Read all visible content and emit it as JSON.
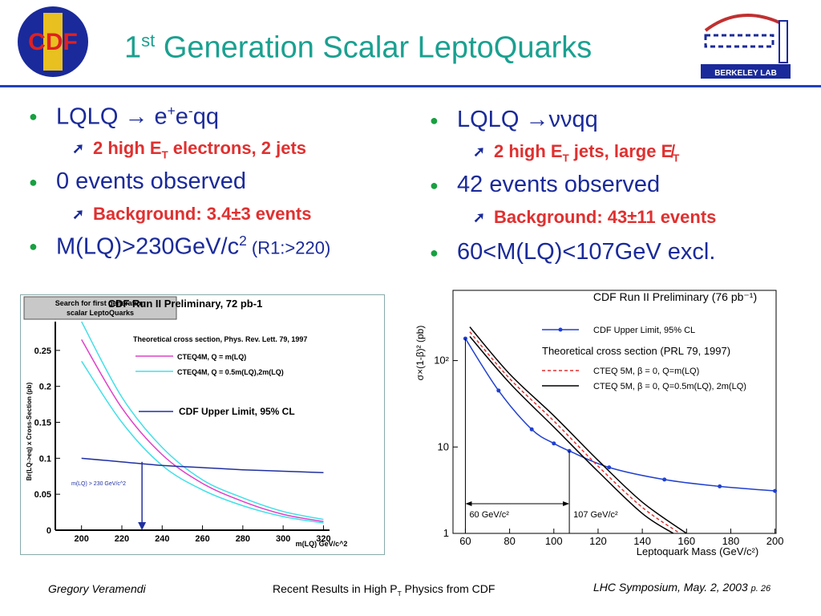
{
  "header": {
    "title_parts": [
      "1",
      "st",
      " Generation Scalar LeptoQuarks"
    ],
    "logo_left": "CDF",
    "logo_right": "BERKELEY LAB"
  },
  "left_bullets": [
    {
      "parts": [
        "LQLQ ",
        "→",
        " e",
        "+",
        "e",
        "-",
        "qq"
      ],
      "sub": [
        "2 high E",
        "T",
        " electrons, 2 jets"
      ]
    },
    {
      "parts": [
        "0 events observed"
      ],
      "sub": [
        "Background: 3.4±3 events"
      ]
    },
    {
      "parts": [
        "M(LQ)>230GeV/c",
        "2",
        " (R1:>220)"
      ]
    }
  ],
  "right_bullets": [
    {
      "parts": [
        "LQLQ ",
        "→",
        "ννqq"
      ],
      "sub": [
        "2 high E",
        "T",
        " jets, large ",
        "E̸",
        "T"
      ]
    },
    {
      "parts": [
        "42 events observed"
      ],
      "sub": [
        "Background: 43±11 events"
      ]
    },
    {
      "parts": [
        "60<M(LQ)<107GeV excl."
      ]
    }
  ],
  "charts": [
    {
      "type": "line",
      "title": "CDF Run II Preliminary, 72 pb-1",
      "box_text": [
        "Search for first generation",
        "scalar LeptoQuarks"
      ],
      "legend_title": "Theoretical  cross section, Phys. Rev. Lett. 79, 1997",
      "x_label": "m(LQ) GeV/c^2",
      "y_label": "Br(LQ->eq) x Cross-Section (pb)",
      "xlim": [
        187,
        323
      ],
      "ylim": [
        0,
        0.29
      ],
      "xticks": [
        200,
        220,
        240,
        260,
        280,
        300,
        320
      ],
      "yticks": [
        0,
        0.05,
        0.1,
        0.15,
        0.2,
        0.25
      ],
      "log_y": false,
      "series": [
        {
          "name": "CTEQ4M, Q = m(LQ)",
          "color": "#e040c8",
          "x": [
            200,
            220,
            240,
            260,
            280,
            300,
            320
          ],
          "values": [
            0.265,
            0.17,
            0.105,
            0.065,
            0.04,
            0.022,
            0.012
          ]
        },
        {
          "name": "CTEQ4M, Q = 0.5m(LQ),2m(LQ)",
          "color": "#40e0e8",
          "x": [
            200,
            220,
            240,
            260,
            280,
            300,
            320
          ],
          "values": [
            0.29,
            0.185,
            0.115,
            0.07,
            0.045,
            0.026,
            0.015
          ]
        },
        {
          "name": null,
          "color": "#40e0e8",
          "x": [
            200,
            220,
            240,
            260,
            280,
            300,
            320
          ],
          "values": [
            0.235,
            0.15,
            0.09,
            0.056,
            0.034,
            0.019,
            0.01
          ]
        },
        {
          "name": "CDF Upper Limit, 95% CL",
          "color": "#2030a0",
          "x": [
            200,
            220,
            240,
            260,
            280,
            300,
            320
          ],
          "values": [
            0.1,
            0.095,
            0.09,
            0.087,
            0.084,
            0.082,
            0.08
          ]
        }
      ],
      "limits": [
        {
          "x": 230,
          "label": "m(LQ) > 230 GeV/c^2"
        }
      ]
    },
    {
      "type": "line",
      "title": "CDF Run II Preliminary (76 pb⁻¹)",
      "legend_title": "Theoretical cross section (PRL 79, 1997)",
      "x_label": "Leptoquark Mass (GeV/c²)",
      "y_label": "σ×(1-β)² (pb)",
      "xlim": [
        54.4,
        200.5
      ],
      "ylim": [
        1,
        650
      ],
      "xticks": [
        60,
        80,
        100,
        120,
        140,
        160,
        180,
        200
      ],
      "yticks": [
        1,
        10,
        {
          "value": 100,
          "label": "10²"
        }
      ],
      "log_y": true,
      "series": [
        {
          "name": "CDF Upper Limit, 95% CL",
          "color": "#2040d0",
          "dots": true,
          "x": [
            60,
            75,
            90,
            100,
            107,
            125,
            150,
            175,
            200
          ],
          "values": [
            180,
            45,
            16,
            11,
            9,
            5.8,
            4.2,
            3.5,
            3.1
          ]
        },
        {
          "name": "CTEQ 5M, β = 0, Q=m(LQ)",
          "color": "#e03030",
          "dashed": true,
          "x": [
            62,
            80,
            100,
            120,
            140,
            157
          ],
          "values": [
            215,
            62,
            20,
            6,
            2,
            1
          ]
        },
        {
          "name": "CTEQ 5M, β = 0, Q=0.5m(LQ), 2m(LQ)",
          "color": "#000000",
          "x": [
            62,
            80,
            100,
            120,
            140,
            160
          ],
          "values": [
            245,
            70,
            23,
            7,
            2.3,
            1
          ]
        },
        {
          "name": null,
          "color": "#000000",
          "x": [
            62,
            80,
            100,
            120,
            140,
            154
          ],
          "values": [
            190,
            55,
            17,
            5.2,
            1.7,
            1
          ]
        }
      ],
      "limits": [
        {
          "x": 60,
          "label": "60 GeV/c²"
        },
        {
          "x": 107,
          "label": "107 GeV/c²"
        }
      ]
    }
  ],
  "footer": {
    "author": "Gregory Veramendi",
    "talk_parts": [
      "Recent Results in High P",
      "T",
      " Physics from CDF"
    ],
    "event": "LHC Symposium, May. 2, 2003",
    "page": "p. 26"
  }
}
